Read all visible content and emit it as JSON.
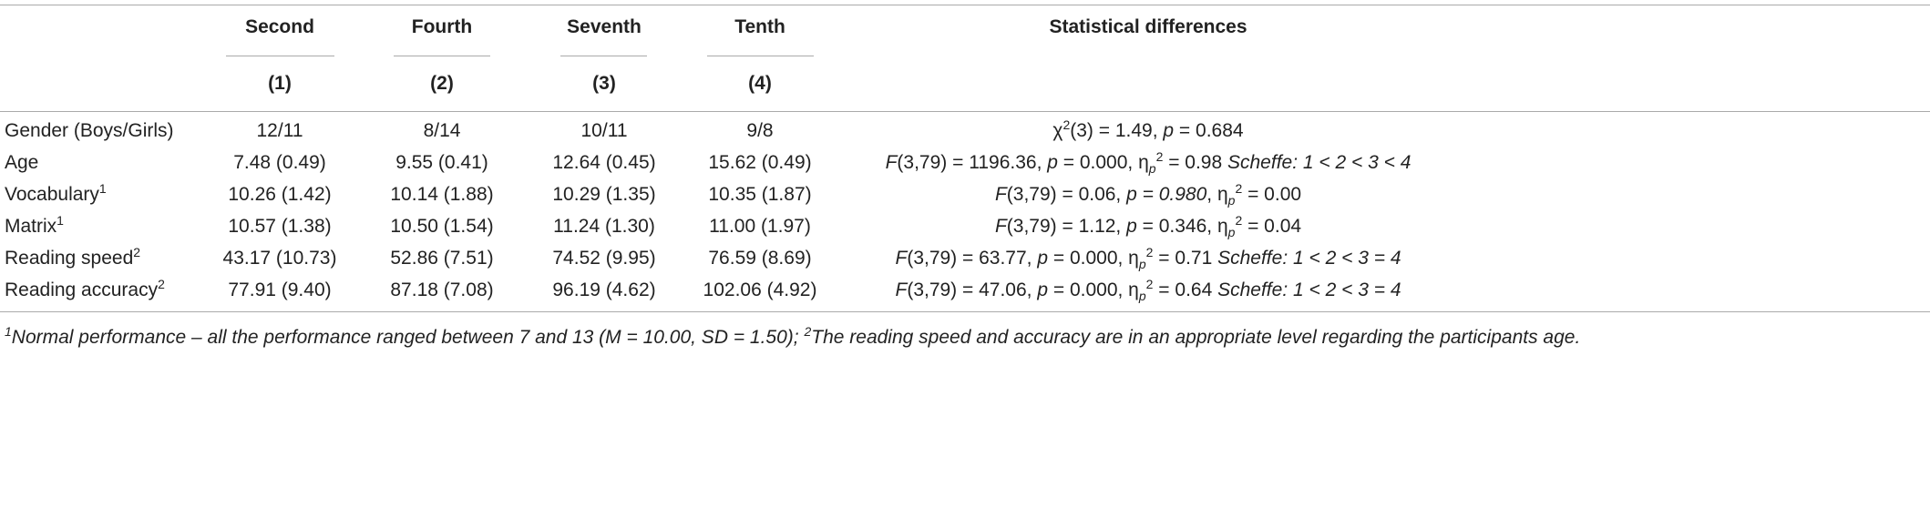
{
  "table": {
    "columns": [
      {
        "label": "Second",
        "number": "(1)"
      },
      {
        "label": "Fourth",
        "number": "(2)"
      },
      {
        "label": "Seventh",
        "number": "(3)"
      },
      {
        "label": "Tenth",
        "number": "(4)"
      }
    ],
    "stat_header": "Statistical differences",
    "rows": [
      {
        "label": [
          {
            "text": "Gender (Boys/Girls)"
          }
        ],
        "cells": [
          "12/11",
          "8/14",
          "10/11",
          "9/8"
        ],
        "stat": [
          {
            "text": "χ"
          },
          {
            "text": "2",
            "style": "sup"
          },
          {
            "text": "(3) = 1.49, "
          },
          {
            "text": "p",
            "style": "italic"
          },
          {
            "text": " = 0.684"
          }
        ]
      },
      {
        "label": [
          {
            "text": "Age"
          }
        ],
        "cells": [
          "7.48 (0.49)",
          "9.55 (0.41)",
          "12.64 (0.45)",
          "15.62 (0.49)"
        ],
        "stat": [
          {
            "text": "F",
            "style": "italic"
          },
          {
            "text": "(3,79) = 1196.36, "
          },
          {
            "text": "p",
            "style": "italic"
          },
          {
            "text": " = 0.000, η"
          },
          {
            "text": "p",
            "style": "sub"
          },
          {
            "text": "2",
            "style": "sup"
          },
          {
            "text": " = 0.98 "
          },
          {
            "text": "Scheffe: 1 < 2 < 3 < 4",
            "style": "italic"
          }
        ]
      },
      {
        "label": [
          {
            "text": "Vocabulary"
          },
          {
            "text": "1",
            "style": "sup"
          }
        ],
        "cells": [
          "10.26 (1.42)",
          "10.14 (1.88)",
          "10.29 (1.35)",
          "10.35 (1.87)"
        ],
        "stat": [
          {
            "text": "F",
            "style": "italic"
          },
          {
            "text": "(3,79) = 0.06, "
          },
          {
            "text": "p = 0.980",
            "style": "italic"
          },
          {
            "text": ", η"
          },
          {
            "text": "p",
            "style": "sub"
          },
          {
            "text": "2",
            "style": "sup"
          },
          {
            "text": " = 0.00"
          }
        ]
      },
      {
        "label": [
          {
            "text": "Matrix"
          },
          {
            "text": "1",
            "style": "sup"
          }
        ],
        "cells": [
          "10.57 (1.38)",
          "10.50 (1.54)",
          "11.24 (1.30)",
          "11.00 (1.97)"
        ],
        "stat": [
          {
            "text": "F",
            "style": "italic"
          },
          {
            "text": "(3,79) = 1.12, "
          },
          {
            "text": "p",
            "style": "italic"
          },
          {
            "text": " = 0.346, η"
          },
          {
            "text": "p",
            "style": "sub"
          },
          {
            "text": "2",
            "style": "sup"
          },
          {
            "text": " = 0.04"
          }
        ]
      },
      {
        "label": [
          {
            "text": "Reading speed"
          },
          {
            "text": "2",
            "style": "sup"
          }
        ],
        "cells": [
          "43.17 (10.73)",
          "52.86 (7.51)",
          "74.52 (9.95)",
          "76.59 (8.69)"
        ],
        "stat": [
          {
            "text": "F",
            "style": "italic"
          },
          {
            "text": "(3,79) = 63.77, "
          },
          {
            "text": "p",
            "style": "italic"
          },
          {
            "text": " = 0.000, η"
          },
          {
            "text": "p",
            "style": "sub"
          },
          {
            "text": "2",
            "style": "sup"
          },
          {
            "text": " = 0.71 "
          },
          {
            "text": "Scheffe: 1 < 2 < 3 = 4",
            "style": "italic"
          }
        ]
      },
      {
        "label": [
          {
            "text": "Reading accuracy"
          },
          {
            "text": "2",
            "style": "sup"
          }
        ],
        "cells": [
          "77.91 (9.40)",
          "87.18 (7.08)",
          "96.19 (4.62)",
          "102.06 (4.92)"
        ],
        "stat": [
          {
            "text": "F",
            "style": "italic"
          },
          {
            "text": "(3,79) = 47.06, "
          },
          {
            "text": "p",
            "style": "italic"
          },
          {
            "text": " = 0.000, η"
          },
          {
            "text": "p",
            "style": "sub"
          },
          {
            "text": "2",
            "style": "sup"
          },
          {
            "text": " = 0.64 "
          },
          {
            "text": "Scheffe: 1 < 2 < 3 = 4",
            "style": "italic"
          }
        ]
      }
    ],
    "footnote": [
      {
        "text": "1",
        "style": "sup"
      },
      {
        "text": "Normal performance – all the performance ranged between 7 and 13 (M = 10.00, SD = 1.50); ",
        "style": "italic"
      },
      {
        "text": "2",
        "style": "sup"
      },
      {
        "text": "The reading speed and accuracy are in an appropriate level regarding the participants age.",
        "style": "italic"
      }
    ]
  }
}
